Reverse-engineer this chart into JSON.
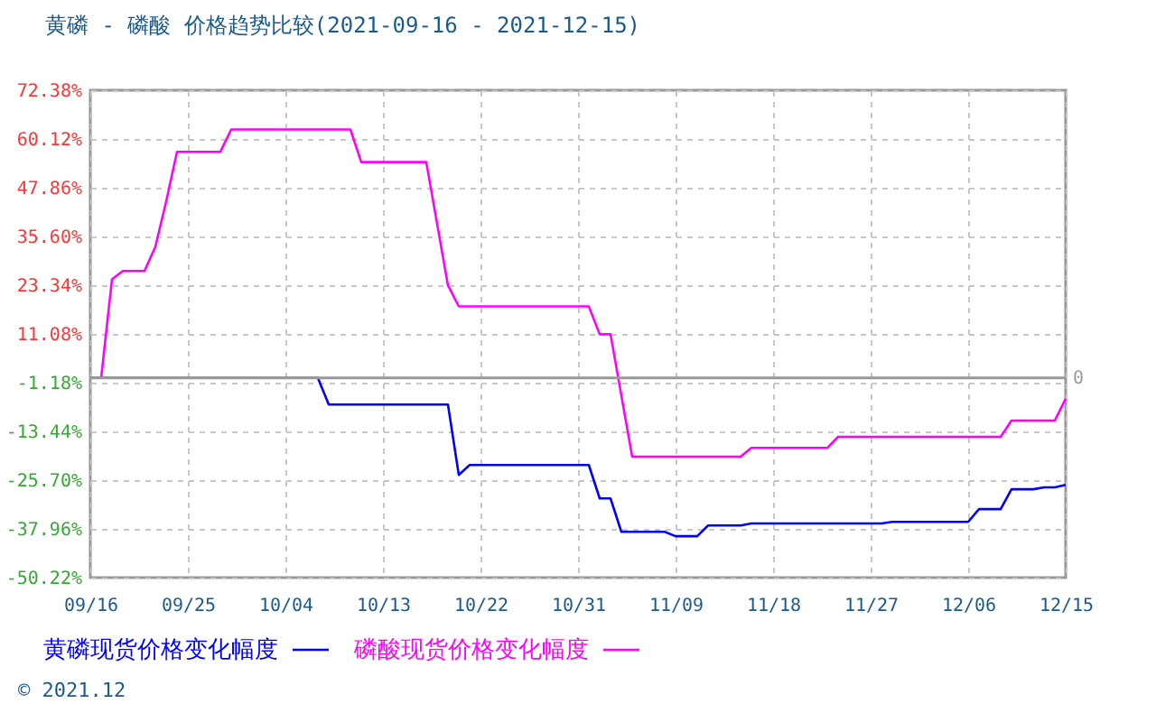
{
  "chart_data": {
    "type": "line",
    "title": "黄磷 - 磷酸 价格趋势比较(2021-09-16 - 2021-12-15)",
    "xlim": [
      "2021-09-16",
      "2021-12-15"
    ],
    "xticks": [
      {
        "value": "2021-09-16",
        "label": "09/16"
      },
      {
        "value": "2021-09-25",
        "label": "09/25"
      },
      {
        "value": "2021-10-04",
        "label": "10/04"
      },
      {
        "value": "2021-10-13",
        "label": "10/13"
      },
      {
        "value": "2021-10-22",
        "label": "10/22"
      },
      {
        "value": "2021-10-31",
        "label": "10/31"
      },
      {
        "value": "2021-11-09",
        "label": "11/09"
      },
      {
        "value": "2021-11-18",
        "label": "11/18"
      },
      {
        "value": "2021-11-27",
        "label": "11/27"
      },
      {
        "value": "2021-12-06",
        "label": "12/06"
      },
      {
        "value": "2021-12-15",
        "label": "12/15"
      }
    ],
    "ylim": [
      -50.22,
      72.38
    ],
    "yticks": [
      {
        "value": 72.38,
        "label": "72.38%"
      },
      {
        "value": 60.12,
        "label": "60.12%"
      },
      {
        "value": 47.86,
        "label": "47.86%"
      },
      {
        "value": 35.6,
        "label": "35.60%"
      },
      {
        "value": 23.34,
        "label": "23.34%"
      },
      {
        "value": 11.08,
        "label": "11.08%"
      },
      {
        "value": -1.18,
        "label": "-1.18%"
      },
      {
        "value": -13.44,
        "label": "-13.44%"
      },
      {
        "value": -25.7,
        "label": "-25.70%"
      },
      {
        "value": -37.96,
        "label": "-37.96%"
      },
      {
        "value": -50.22,
        "label": "-50.22%"
      }
    ],
    "series": [
      {
        "name": "黄磷现货价格变化幅度",
        "color": "#0000ff",
        "x": [
          "2021-09-16",
          "2021-10-07",
          "2021-10-08",
          "2021-10-19",
          "2021-10-20",
          "2021-10-21",
          "2021-11-01",
          "2021-11-02",
          "2021-11-03",
          "2021-11-04",
          "2021-11-08",
          "2021-11-09",
          "2021-11-11",
          "2021-11-12",
          "2021-11-15",
          "2021-11-16",
          "2021-11-28",
          "2021-11-29",
          "2021-12-06",
          "2021-12-07",
          "2021-12-09",
          "2021-12-10",
          "2021-12-12",
          "2021-12-13",
          "2021-12-14",
          "2021-12-15"
        ],
        "values": [
          0,
          0,
          -6.7,
          -6.7,
          -24.4,
          -21.9,
          -21.9,
          -30.3,
          -30.3,
          -38.7,
          -38.7,
          -39.8,
          -39.8,
          -37.1,
          -37.1,
          -36.6,
          -36.6,
          -36.2,
          -36.2,
          -33.0,
          -33.0,
          -28.0,
          -28.0,
          -27.5,
          -27.5,
          -26.9
        ]
      },
      {
        "name": "磷酸现货价格变化幅度",
        "color": "#ff00ff",
        "x": [
          "2021-09-16",
          "2021-09-17",
          "2021-09-18",
          "2021-09-19",
          "2021-09-21",
          "2021-09-22",
          "2021-09-23",
          "2021-09-24",
          "2021-09-28",
          "2021-09-29",
          "2021-10-10",
          "2021-10-11",
          "2021-10-17",
          "2021-10-19",
          "2021-10-20",
          "2021-11-01",
          "2021-11-02",
          "2021-11-03",
          "2021-11-05",
          "2021-11-15",
          "2021-11-16",
          "2021-11-23",
          "2021-11-24",
          "2021-12-09",
          "2021-12-10",
          "2021-12-14",
          "2021-12-15"
        ],
        "values": [
          0,
          0,
          24.8,
          26.9,
          26.9,
          33.0,
          44.4,
          56.9,
          56.9,
          62.5,
          62.5,
          54.3,
          54.3,
          23.3,
          18.0,
          18.0,
          11.0,
          11.0,
          -19.8,
          -19.8,
          -17.6,
          -17.6,
          -14.8,
          -14.8,
          -10.7,
          -10.7,
          -5.2
        ]
      }
    ],
    "ref_lines": [
      {
        "axis": "y",
        "value": 0,
        "label": "0",
        "color": "#999999"
      }
    ],
    "grid": true,
    "legend": "bottom left",
    "annotations": [
      "© 2021.12"
    ]
  }
}
